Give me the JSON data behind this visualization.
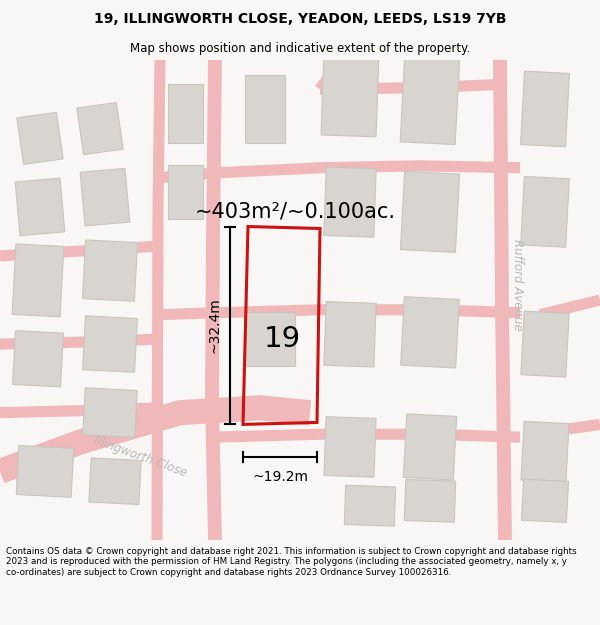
{
  "title_line1": "19, ILLINGWORTH CLOSE, YEADON, LEEDS, LS19 7YB",
  "title_line2": "Map shows position and indicative extent of the property.",
  "area_text": "~403m²/~0.100ac.",
  "label_19": "19",
  "dim_width": "~19.2m",
  "dim_height": "~32.4m",
  "road_label1": "Illingworth Close",
  "road_label2": "Rufford Avenue",
  "footer_text": "Contains OS data © Crown copyright and database right 2021. This information is subject to Crown copyright and database rights 2023 and is reproduced with the permission of HM Land Registry. The polygons (including the associated geometry, namely x, y co-ordinates) are subject to Crown copyright and database rights 2023 Ordnance Survey 100026316.",
  "bg_color": "#f8f7f5",
  "map_bg": "#ffffff",
  "plot_color": "#cc1111",
  "road_color": "#f0b8b8",
  "building_color": "#d8d5d0",
  "building_stroke": "#c8c5c0",
  "road_label_color": "#b8b8b8",
  "road_stroke": "#e8a0a0"
}
